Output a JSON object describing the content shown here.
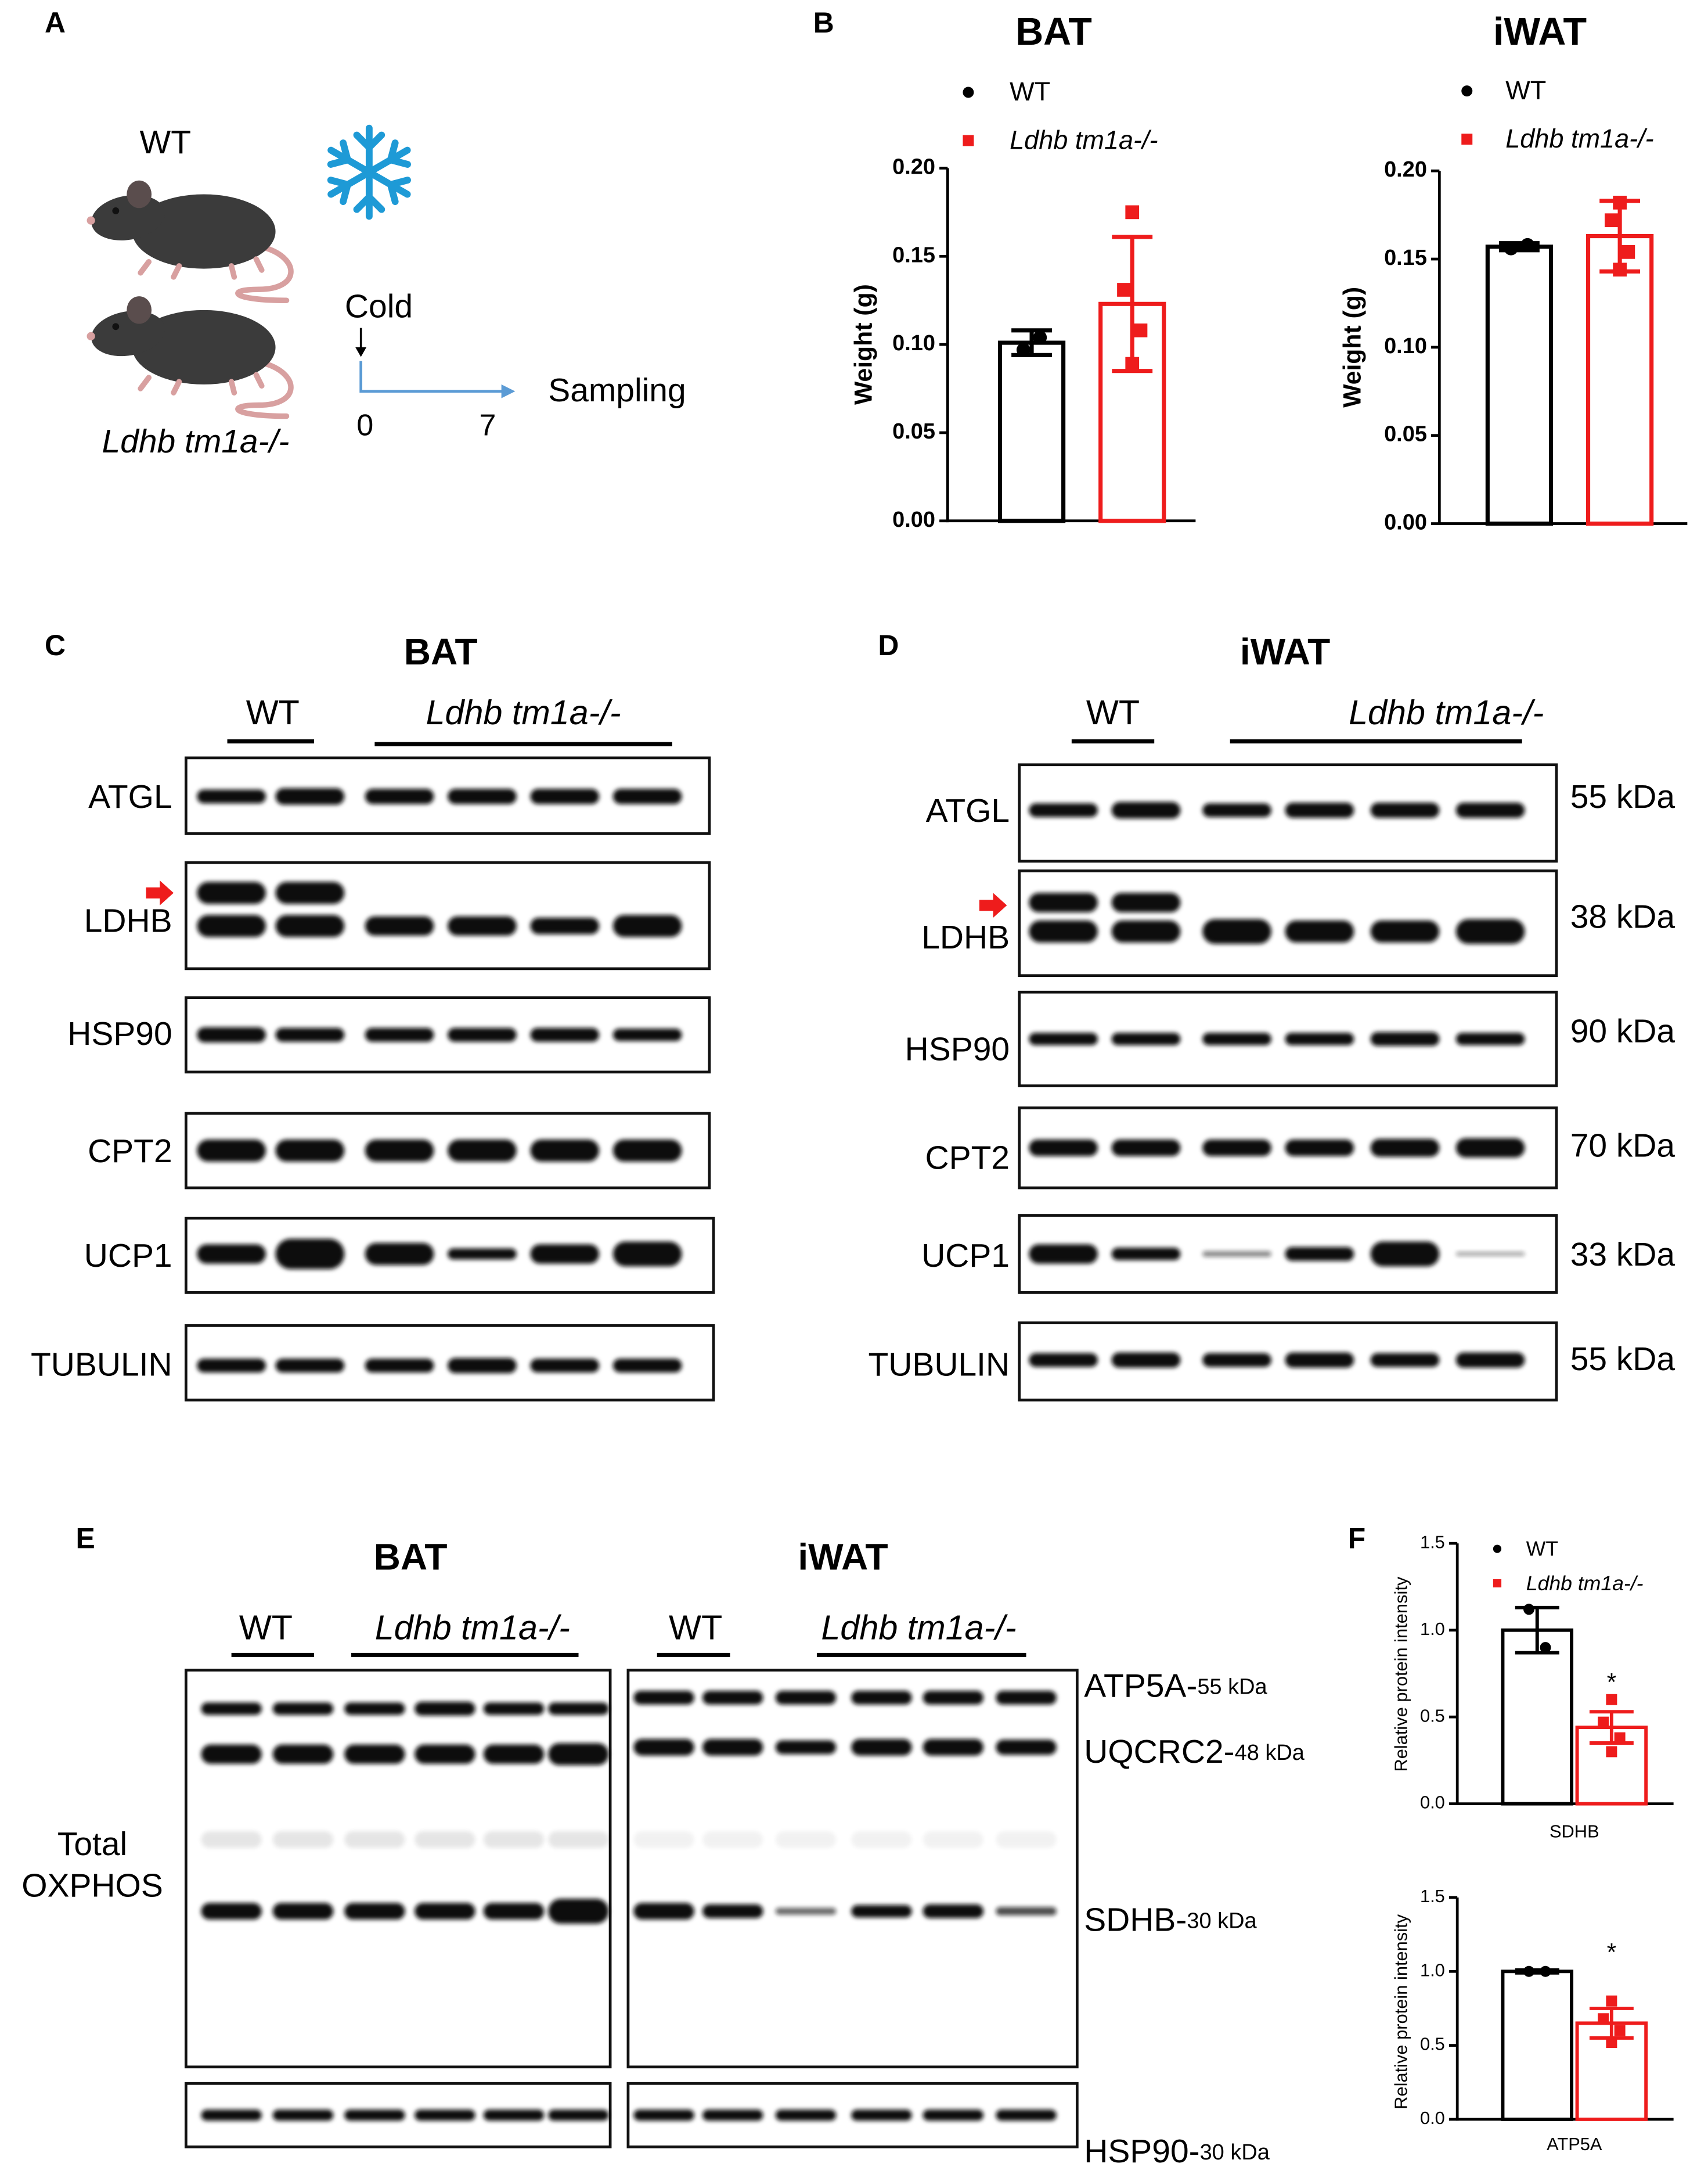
{
  "panel_labels": [
    "A",
    "B",
    "C",
    "D",
    "E",
    "F"
  ],
  "panel_a": {
    "groups": [
      "WT",
      "Ldhb tm1a-/-"
    ],
    "treatment": "Cold",
    "timeline": [
      0,
      7
    ],
    "endpoint": "Sampling"
  },
  "chart_data": [
    {
      "type": "bar",
      "title": "BAT",
      "ylabel": "Weight (g)",
      "ylim": [
        0,
        0.2
      ],
      "yticks": [
        {
          "value": 0,
          "label": "0.00"
        },
        {
          "value": 0.05,
          "label": "0.05"
        },
        {
          "value": 0.1,
          "label": "0.10"
        },
        {
          "value": 0.15,
          "label": "0.15"
        },
        {
          "value": 0.2,
          "label": "0.20"
        }
      ],
      "series": [
        {
          "name": "WT",
          "color": "#000000",
          "marker": "circle",
          "value": 0.101,
          "error": 0.007,
          "points": [
            0.097,
            0.104
          ]
        },
        {
          "name": "Ldhb tm1a-/-",
          "color": "#ee1c1c",
          "marker": "square",
          "value": 0.123,
          "error": 0.038,
          "points": [
            0.175,
            0.131,
            0.108,
            0.089
          ]
        }
      ]
    },
    {
      "type": "bar",
      "title": "iWAT",
      "ylabel": "Weight (g)",
      "ylim": [
        0,
        0.2
      ],
      "yticks": [
        {
          "value": 0,
          "label": "0.00"
        },
        {
          "value": 0.05,
          "label": "0.05"
        },
        {
          "value": 0.1,
          "label": "0.10"
        },
        {
          "value": 0.15,
          "label": "0.15"
        },
        {
          "value": 0.2,
          "label": "0.20"
        }
      ],
      "series": [
        {
          "name": "WT",
          "color": "#000000",
          "marker": "circle",
          "value": 0.157,
          "error": 0.002,
          "points": [
            0.156,
            0.158
          ]
        },
        {
          "name": "Ldhb tm1a-/-",
          "color": "#ee1c1c",
          "marker": "square",
          "value": 0.163,
          "error": 0.02,
          "points": [
            0.182,
            0.172,
            0.154,
            0.144
          ]
        }
      ]
    },
    {
      "type": "bar",
      "xlabel": "SDHB",
      "ylabel": "Relative protein intensity",
      "annotation": "*",
      "ylim": [
        0,
        1.5
      ],
      "yticks": [
        {
          "value": 0,
          "label": "0.0"
        },
        {
          "value": 0.5,
          "label": "0.5"
        },
        {
          "value": 1,
          "label": "1.0"
        },
        {
          "value": 1.5,
          "label": "1.5"
        }
      ],
      "series": [
        {
          "name": "WT",
          "color": "#000000",
          "marker": "circle",
          "value": 1.0,
          "error": 0.13,
          "points": [
            1.12,
            0.9
          ]
        },
        {
          "name": "Ldhb tm1a-/-",
          "color": "#ee1c1c",
          "marker": "square",
          "value": 0.44,
          "error": 0.09,
          "points": [
            0.6,
            0.47,
            0.38,
            0.3
          ]
        }
      ]
    },
    {
      "type": "bar",
      "xlabel": "ATP5A",
      "ylabel": "Relative protein intensity",
      "annotation": "*",
      "ylim": [
        0,
        1.5
      ],
      "yticks": [
        {
          "value": 0,
          "label": "0.0"
        },
        {
          "value": 0.5,
          "label": "0.5"
        },
        {
          "value": 1,
          "label": "1.0"
        },
        {
          "value": 1.5,
          "label": "1.5"
        }
      ],
      "series": [
        {
          "color": "#000000",
          "marker": "circle",
          "value": 1.0,
          "error": 0.01,
          "points": [
            1.0,
            1.0
          ]
        },
        {
          "color": "#ee1c1c",
          "marker": "square",
          "value": 0.65,
          "error": 0.1,
          "points": [
            0.8,
            0.68,
            0.6,
            0.52
          ]
        }
      ]
    }
  ],
  "blot_c": {
    "title": "BAT",
    "groups": [
      "WT",
      "Ldhb tm1a-/-"
    ],
    "proteins": [
      "ATGL",
      "LDHB",
      "HSP90",
      "CPT2",
      "UCP1",
      "TUBULIN"
    ]
  },
  "blot_d": {
    "title": "iWAT",
    "groups": [
      "WT",
      "Ldhb tm1a-/-"
    ],
    "proteins": [
      "ATGL",
      "LDHB",
      "HSP90",
      "CPT2",
      "UCP1",
      "TUBULIN"
    ],
    "sizes": [
      "55 kDa",
      "38 kDa",
      "90 kDa",
      "70 kDa",
      "33 kDa",
      "55 kDa"
    ]
  },
  "blot_e": {
    "titles": [
      "BAT",
      "iWAT"
    ],
    "groups": [
      "WT",
      "Ldhb tm1a-/-"
    ],
    "side_label": [
      "Total",
      "OXPHOS"
    ],
    "proteins": [
      "ATP5A-",
      "UQCRC2-",
      "SDHB-",
      "HSP90-"
    ],
    "sizes": [
      "55 kDa",
      "48 kDa",
      "30 kDa",
      "30 kDa"
    ]
  }
}
